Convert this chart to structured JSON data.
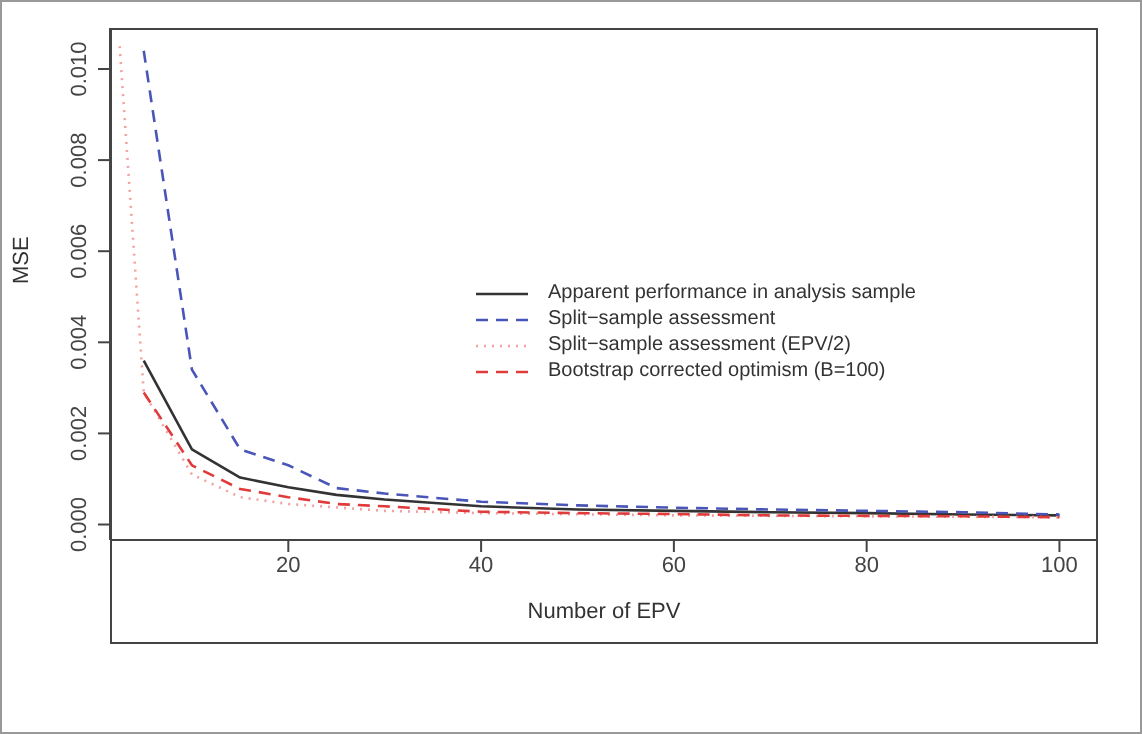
{
  "chart_data": {
    "type": "line",
    "xlabel": "Number of EPV",
    "ylabel": "MSE",
    "xlim": [
      1.5,
      104
    ],
    "ylim": [
      -0.00034,
      0.0109
    ],
    "xticks": [
      20,
      40,
      60,
      80,
      100
    ],
    "yticks": [
      {
        "value": 0,
        "label": "0.000"
      },
      {
        "value": 0.002,
        "label": "0.002"
      },
      {
        "value": 0.004,
        "label": "0.004"
      },
      {
        "value": 0.006,
        "label": "0.006"
      },
      {
        "value": 0.008,
        "label": "0.008"
      },
      {
        "value": 0.01,
        "label": "0.010"
      }
    ],
    "grid": false,
    "legend": "right",
    "marker": "none",
    "series": [
      {
        "name": "Apparent performance in analysis sample",
        "color": "#333333",
        "line_style": "solid",
        "x": [
          5,
          10,
          15,
          20,
          25,
          30,
          40,
          50,
          60,
          70,
          80,
          90,
          100
        ],
        "values": [
          0.0036,
          0.00165,
          0.00103,
          0.00082,
          0.00065,
          0.00055,
          0.0004,
          0.00033,
          0.0003,
          0.00027,
          0.00025,
          0.00022,
          0.0002
        ]
      },
      {
        "name": "Split−sample assessment",
        "color": "#4a55b8",
        "line_style": "dashed",
        "x": [
          5,
          10,
          15,
          20,
          25,
          30,
          40,
          50,
          60,
          70,
          80,
          90,
          100
        ],
        "values": [
          0.0104,
          0.0034,
          0.00165,
          0.0013,
          0.0008,
          0.00068,
          0.0005,
          0.00042,
          0.00037,
          0.00033,
          0.0003,
          0.00027,
          0.00022
        ]
      },
      {
        "name": "Split−sample assessment (EPV/2)",
        "color": "#f2a0a0",
        "line_style": "dotted",
        "x": [
          2.5,
          5,
          10,
          15,
          20,
          30,
          40,
          60,
          80,
          100
        ],
        "values": [
          0.0105,
          0.0029,
          0.0011,
          0.0006,
          0.00045,
          0.0003,
          0.00025,
          0.0002,
          0.00018,
          0.00016
        ]
      },
      {
        "name": "Bootstrap corrected optimism (B=100)",
        "color": "#e03a3a",
        "line_style": "dashed",
        "x": [
          5,
          10,
          15,
          20,
          25,
          30,
          40,
          50,
          60,
          70,
          80,
          90,
          100
        ],
        "values": [
          0.0029,
          0.0013,
          0.00078,
          0.0006,
          0.00045,
          0.0004,
          0.00028,
          0.00025,
          0.00023,
          0.0002,
          0.00019,
          0.00018,
          0.00016
        ]
      }
    ]
  }
}
